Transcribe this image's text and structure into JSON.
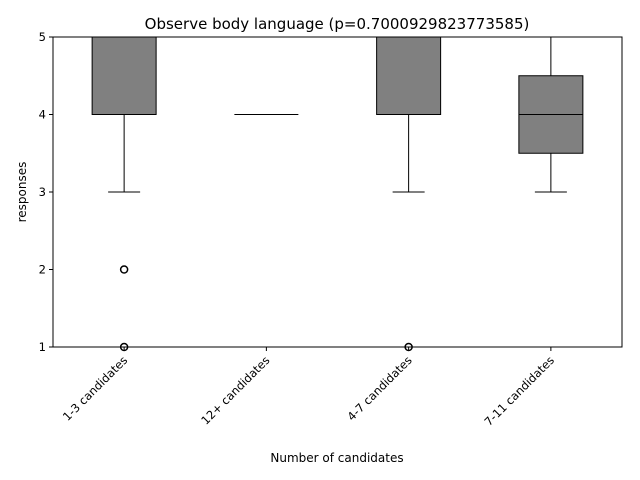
{
  "chart_data": {
    "type": "box",
    "title": "Observe body language (p=0.7000929823773585)",
    "xlabel": "Number of candidates",
    "ylabel": "responses",
    "ylim": [
      1,
      5
    ],
    "yticks": [
      1,
      2,
      3,
      4,
      5
    ],
    "box_color": "#808080",
    "categories": [
      "1-3 candidates",
      "12+ candidates",
      "4-7 candidates",
      "7-11 candidates"
    ],
    "boxes": [
      {
        "whisker_low": 3,
        "q1": 4,
        "median": 5,
        "q3": 5,
        "whisker_high": 5,
        "outliers": [
          2,
          1
        ]
      },
      {
        "whisker_low": 4,
        "q1": 4,
        "median": 4,
        "q3": 4,
        "whisker_high": 4,
        "outliers": []
      },
      {
        "whisker_low": 3,
        "q1": 4,
        "median": 5,
        "q3": 5,
        "whisker_high": 5,
        "outliers": [
          1
        ]
      },
      {
        "whisker_low": 3,
        "q1": 3.5,
        "median": 4,
        "q3": 4.5,
        "whisker_high": 5,
        "outliers": []
      }
    ]
  }
}
